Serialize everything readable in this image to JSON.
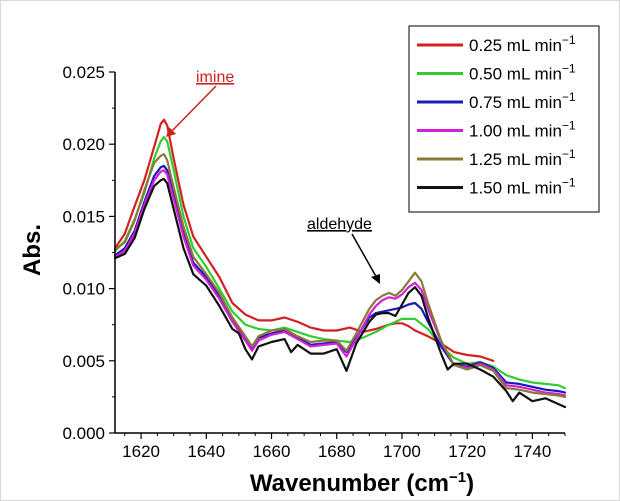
{
  "chart_data": {
    "type": "line",
    "xlabel": "Wavenumber (cm",
    "xlabel_sup": "−1",
    "xlabel_end": ")",
    "ylabel": "Abs.",
    "xlim": [
      1612,
      1750
    ],
    "ylim": [
      0.0,
      0.025
    ],
    "xticks": [
      1620,
      1640,
      1660,
      1680,
      1700,
      1720,
      1740
    ],
    "xtick_labels": [
      "1620",
      "1640",
      "1660",
      "1680",
      "1700",
      "1720",
      "1740"
    ],
    "yticks": [
      0.0,
      0.005,
      0.01,
      0.015,
      0.02,
      0.025
    ],
    "ytick_labels": [
      "0.000",
      "0.005",
      "0.010",
      "0.015",
      "0.020",
      "0.025"
    ],
    "legend_position": "top-right",
    "annotations": [
      {
        "text": "imine",
        "color": "#cc2222",
        "x": 1627,
        "y": 0.0216
      },
      {
        "text": "aldehyde",
        "color": "#000000",
        "x": 1697,
        "y": 0.0095
      }
    ],
    "series": [
      {
        "name": "0.25 mL min",
        "unit_sup": "−1",
        "color": "#d42020",
        "x": [
          1612,
          1615,
          1618,
          1621,
          1624,
          1626,
          1627,
          1628,
          1630,
          1633,
          1636,
          1640,
          1644,
          1648,
          1652,
          1656,
          1660,
          1664,
          1668,
          1672,
          1676,
          1680,
          1684,
          1688,
          1692,
          1696,
          1698,
          1700,
          1702,
          1704,
          1708,
          1712,
          1716,
          1720,
          1724,
          1728
        ],
        "y": [
          0.0128,
          0.0138,
          0.0157,
          0.0175,
          0.0198,
          0.0214,
          0.0217,
          0.0213,
          0.019,
          0.0158,
          0.0136,
          0.0122,
          0.0108,
          0.009,
          0.0082,
          0.0078,
          0.0078,
          0.008,
          0.0077,
          0.0073,
          0.0071,
          0.0071,
          0.0073,
          0.007,
          0.0072,
          0.0075,
          0.0076,
          0.0076,
          0.0074,
          0.0071,
          0.0067,
          0.0062,
          0.0056,
          0.0054,
          0.0053,
          0.005
        ]
      },
      {
        "name": "0.50 mL min",
        "unit_sup": "−1",
        "color": "#33cc33",
        "x": [
          1612,
          1615,
          1618,
          1621,
          1624,
          1626,
          1627,
          1628,
          1630,
          1633,
          1636,
          1640,
          1644,
          1648,
          1652,
          1656,
          1660,
          1664,
          1668,
          1672,
          1676,
          1680,
          1684,
          1688,
          1692,
          1696,
          1700,
          1704,
          1708,
          1712,
          1716,
          1720,
          1724,
          1728,
          1732,
          1736,
          1740,
          1744,
          1748,
          1750
        ],
        "y": [
          0.0126,
          0.0133,
          0.0148,
          0.0166,
          0.019,
          0.0202,
          0.0205,
          0.0202,
          0.0182,
          0.015,
          0.0128,
          0.0115,
          0.01,
          0.0084,
          0.0075,
          0.0072,
          0.0071,
          0.0073,
          0.007,
          0.0067,
          0.0065,
          0.0064,
          0.0063,
          0.0066,
          0.007,
          0.0075,
          0.0079,
          0.0079,
          0.0072,
          0.006,
          0.0052,
          0.0048,
          0.0049,
          0.0046,
          0.004,
          0.0037,
          0.0035,
          0.0034,
          0.0033,
          0.0031
        ]
      },
      {
        "name": "0.75 mL min",
        "unit_sup": "−1",
        "color": "#1a1ab8",
        "x": [
          1612,
          1615,
          1618,
          1621,
          1624,
          1626,
          1627,
          1628,
          1630,
          1633,
          1636,
          1640,
          1644,
          1648,
          1652,
          1654,
          1656,
          1660,
          1664,
          1668,
          1672,
          1676,
          1680,
          1683,
          1686,
          1690,
          1692,
          1696,
          1700,
          1702,
          1704,
          1706,
          1708,
          1712,
          1716,
          1720,
          1724,
          1728,
          1732,
          1736,
          1740,
          1744,
          1748,
          1750
        ],
        "y": [
          0.0123,
          0.0128,
          0.014,
          0.016,
          0.0178,
          0.0184,
          0.0185,
          0.0182,
          0.0165,
          0.0138,
          0.0118,
          0.0108,
          0.0095,
          0.0078,
          0.0066,
          0.0059,
          0.0066,
          0.0069,
          0.0071,
          0.0066,
          0.0061,
          0.0062,
          0.0063,
          0.0056,
          0.0066,
          0.008,
          0.0083,
          0.0085,
          0.0087,
          0.0089,
          0.009,
          0.0086,
          0.0077,
          0.006,
          0.0047,
          0.0046,
          0.0049,
          0.0045,
          0.0035,
          0.0034,
          0.0032,
          0.003,
          0.0029,
          0.0028
        ]
      },
      {
        "name": "1.00 mL min",
        "unit_sup": "−1",
        "color": "#d61ed6",
        "x": [
          1612,
          1615,
          1618,
          1621,
          1624,
          1626,
          1627,
          1628,
          1630,
          1633,
          1636,
          1640,
          1644,
          1648,
          1652,
          1654,
          1656,
          1660,
          1664,
          1668,
          1672,
          1676,
          1680,
          1683,
          1686,
          1690,
          1692,
          1694,
          1696,
          1698,
          1700,
          1702,
          1704,
          1706,
          1708,
          1712,
          1716,
          1720,
          1724,
          1728,
          1732,
          1736,
          1740,
          1744,
          1748,
          1750
        ],
        "y": [
          0.0122,
          0.0126,
          0.0138,
          0.0158,
          0.0175,
          0.0181,
          0.0182,
          0.0179,
          0.0162,
          0.0136,
          0.0116,
          0.0106,
          0.0093,
          0.0077,
          0.0064,
          0.0057,
          0.0064,
          0.0068,
          0.007,
          0.0065,
          0.006,
          0.0061,
          0.0062,
          0.0053,
          0.0065,
          0.0082,
          0.0088,
          0.0092,
          0.0094,
          0.0093,
          0.0096,
          0.0101,
          0.0104,
          0.0099,
          0.0086,
          0.0063,
          0.0047,
          0.0045,
          0.0048,
          0.0044,
          0.0033,
          0.0032,
          0.003,
          0.0028,
          0.0027,
          0.0026
        ]
      },
      {
        "name": "1.25 mL min",
        "unit_sup": "−1",
        "color": "#8a7a3a",
        "x": [
          1612,
          1615,
          1618,
          1621,
          1624,
          1626,
          1627,
          1628,
          1630,
          1633,
          1636,
          1640,
          1644,
          1648,
          1652,
          1654,
          1656,
          1660,
          1664,
          1668,
          1672,
          1676,
          1680,
          1683,
          1686,
          1690,
          1692,
          1694,
          1696,
          1698,
          1700,
          1702,
          1704,
          1706,
          1708,
          1712,
          1716,
          1720,
          1724,
          1728,
          1732,
          1736,
          1740,
          1744,
          1748,
          1750
        ],
        "y": [
          0.0127,
          0.0132,
          0.0147,
          0.0168,
          0.0187,
          0.0192,
          0.0193,
          0.0189,
          0.017,
          0.0143,
          0.0122,
          0.011,
          0.0097,
          0.008,
          0.0067,
          0.006,
          0.0067,
          0.0071,
          0.0072,
          0.0067,
          0.0063,
          0.0064,
          0.0064,
          0.0057,
          0.0069,
          0.0086,
          0.0092,
          0.0095,
          0.0097,
          0.0095,
          0.0099,
          0.0105,
          0.0111,
          0.0105,
          0.009,
          0.0064,
          0.0047,
          0.0044,
          0.0047,
          0.0043,
          0.0031,
          0.003,
          0.0028,
          0.0027,
          0.0026,
          0.0025
        ]
      },
      {
        "name": "1.50 mL min",
        "unit_sup": "−1",
        "color": "#111111",
        "x": [
          1612,
          1615,
          1618,
          1621,
          1624,
          1626,
          1627,
          1628,
          1630,
          1633,
          1636,
          1640,
          1644,
          1648,
          1650,
          1652,
          1654,
          1656,
          1660,
          1664,
          1666,
          1668,
          1672,
          1676,
          1680,
          1683,
          1686,
          1690,
          1692,
          1694,
          1696,
          1698,
          1700,
          1702,
          1704,
          1706,
          1708,
          1712,
          1714,
          1716,
          1720,
          1724,
          1728,
          1732,
          1734,
          1736,
          1740,
          1744,
          1748,
          1750
        ],
        "y": [
          0.0121,
          0.0124,
          0.0135,
          0.0155,
          0.0171,
          0.0175,
          0.0176,
          0.0173,
          0.0155,
          0.0128,
          0.011,
          0.0102,
          0.0088,
          0.0072,
          0.0069,
          0.0058,
          0.0051,
          0.006,
          0.0063,
          0.0065,
          0.0056,
          0.0061,
          0.0055,
          0.0055,
          0.0058,
          0.0043,
          0.0062,
          0.0077,
          0.0082,
          0.0083,
          0.0083,
          0.0081,
          0.0089,
          0.0097,
          0.0101,
          0.0095,
          0.008,
          0.0055,
          0.0044,
          0.0048,
          0.0048,
          0.0044,
          0.0039,
          0.0029,
          0.0022,
          0.0028,
          0.0022,
          0.0024,
          0.002,
          0.0018
        ]
      }
    ]
  }
}
